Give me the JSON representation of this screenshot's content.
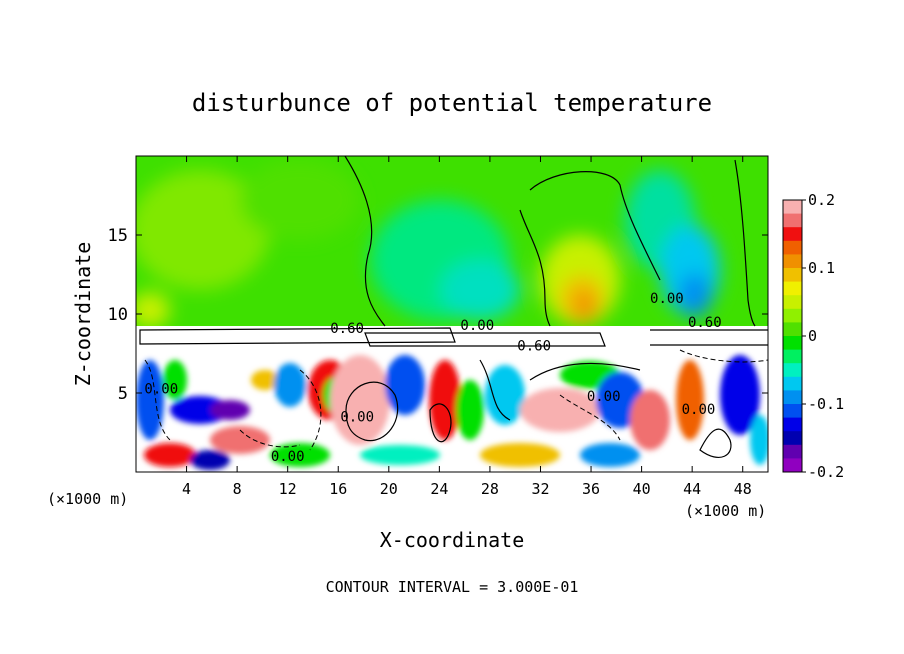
{
  "chart_data": {
    "type": "heatmap",
    "title": "disturbunce of potential temperature",
    "xlabel": "X-coordinate",
    "ylabel": "Z-coordinate",
    "x_unit": "(×1000 m)",
    "z_unit": "(×1000 m)",
    "xlim": [
      0,
      50
    ],
    "ylim": [
      0,
      20
    ],
    "x_ticks": [
      4,
      8,
      12,
      16,
      20,
      24,
      28,
      32,
      36,
      40,
      44,
      48
    ],
    "y_ticks": [
      5,
      10,
      15
    ],
    "colorbar": {
      "range": [
        -0.2,
        0.2
      ],
      "ticks": [
        0.2,
        0.1,
        0,
        -0.1,
        -0.2
      ],
      "tick_labels": [
        "0.2",
        "0.1",
        "0",
        "-0.1",
        "-0.2"
      ],
      "colors": [
        "#f8b0b0",
        "#f07070",
        "#f01010",
        "#f06000",
        "#f09000",
        "#f0c000",
        "#f0f000",
        "#c8f000",
        "#90f000",
        "#50e000",
        "#00e000",
        "#00f060",
        "#00f0c0",
        "#00c8f0",
        "#0090f0",
        "#0050f0",
        "#0000e8",
        "#0000b0",
        "#6000b0",
        "#9000c0"
      ]
    },
    "contour_labels": [
      {
        "text": "0.60",
        "x": 16.7,
        "z": 9.1
      },
      {
        "text": "0.00",
        "x": 27.0,
        "z": 9.3
      },
      {
        "text": "0.60",
        "x": 31.5,
        "z": 8.0
      },
      {
        "text": "0.00",
        "x": 2.0,
        "z": 5.3
      },
      {
        "text": "0.00",
        "x": 17.5,
        "z": 3.5
      },
      {
        "text": "0.00",
        "x": 12.0,
        "z": 1.0
      },
      {
        "text": "0.00",
        "x": 37.0,
        "z": 4.8
      },
      {
        "text": "0.00",
        "x": 44.5,
        "z": 4.0
      },
      {
        "text": "0.00",
        "x": 42.0,
        "z": 11.0
      },
      {
        "text": "0.60",
        "x": 45.0,
        "z": 9.5
      }
    ],
    "contour_interval_label": "CONTOUR INTERVAL = 3.000E-01"
  }
}
